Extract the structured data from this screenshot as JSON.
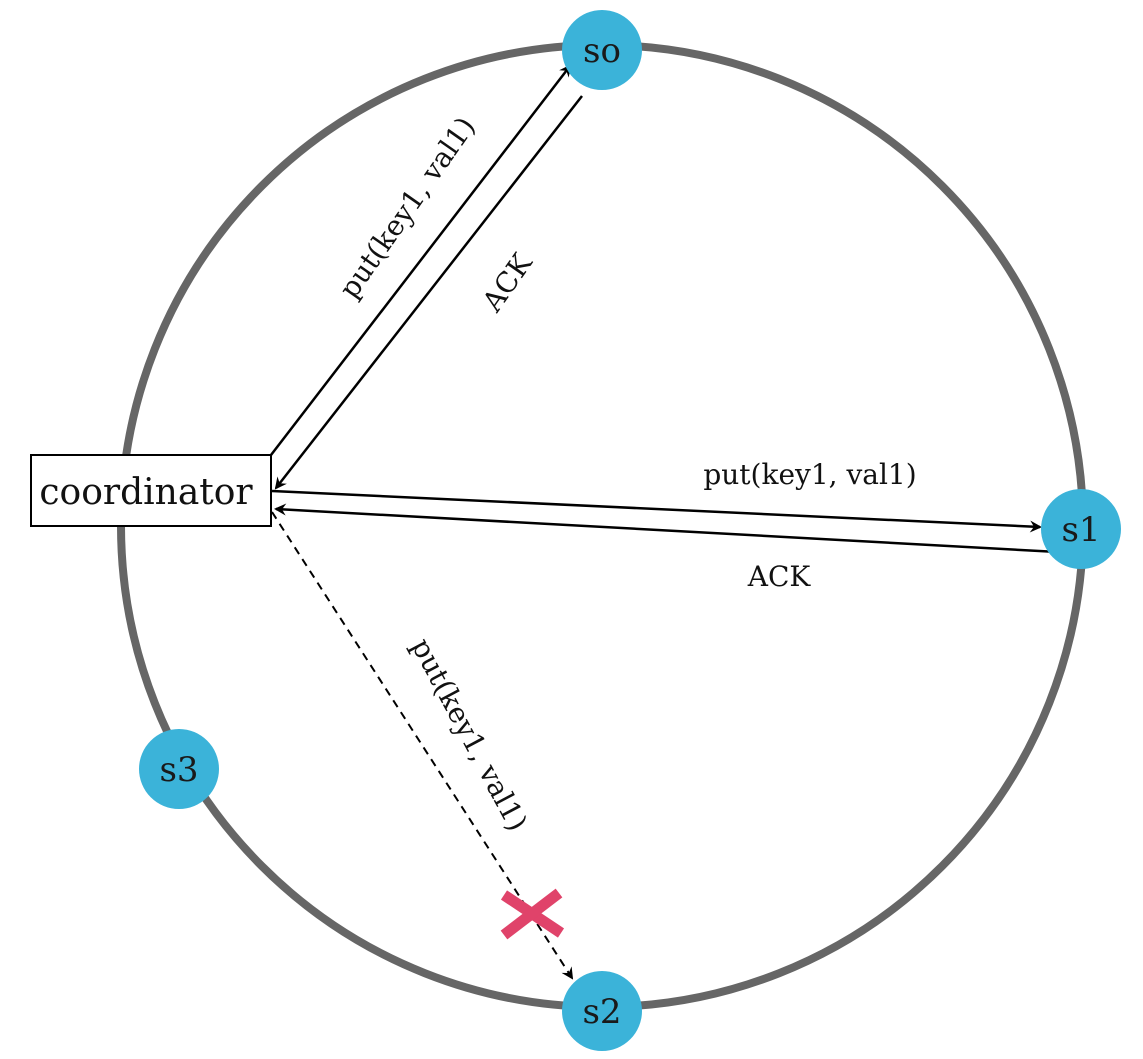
{
  "colors": {
    "ring": "#666666",
    "server": "#3bb3d9",
    "arrow": "#000000",
    "failure_mark": "#e0436a"
  },
  "coordinator": {
    "label": "coordinator"
  },
  "servers": {
    "s0": {
      "label": "so"
    },
    "s1": {
      "label": "s1"
    },
    "s2": {
      "label": "s2"
    },
    "s3": {
      "label": "s3"
    }
  },
  "edges": {
    "put_s0": {
      "label": "put(key1, val1)"
    },
    "ack_s0": {
      "label": "ACK"
    },
    "put_s1": {
      "label": "put(key1, val1)"
    },
    "ack_s1": {
      "label": "ACK"
    },
    "put_s2": {
      "label": "put(key1, val1)",
      "failed": true
    }
  }
}
